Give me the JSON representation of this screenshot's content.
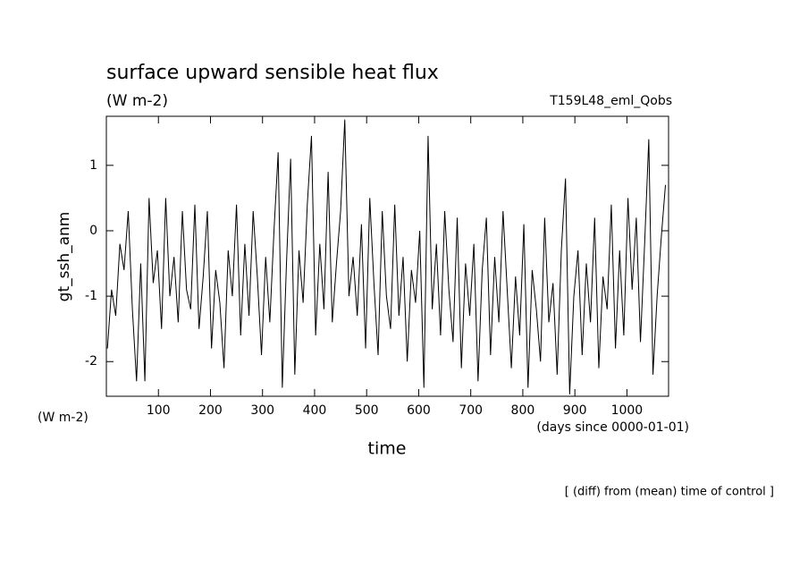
{
  "chart_data": {
    "type": "line",
    "title": "surface upward sensible heat flux",
    "subtitle": "(W m-2)",
    "annotation_right": "T159L48_eml_Qobs",
    "ylabel": "gt_ssh_anm",
    "y_unit": "(W m-2)",
    "xlabel": "time",
    "x_unit": "(days since 0000-01-01)",
    "footnote": "[ (diff) from (mean) time of control ]",
    "xlim": [
      0,
      1080
    ],
    "ylim": [
      -2.53,
      1.75
    ],
    "xticks": [
      100,
      200,
      300,
      400,
      500,
      600,
      700,
      800,
      900,
      1000
    ],
    "yticks": [
      1,
      0,
      -1,
      -2
    ],
    "x": [
      2,
      10,
      18,
      26,
      34,
      42,
      50,
      58,
      66,
      74,
      82,
      90,
      98,
      106,
      114,
      122,
      130,
      138,
      146,
      154,
      162,
      170,
      178,
      186,
      194,
      202,
      210,
      218,
      226,
      234,
      242,
      250,
      258,
      266,
      274,
      282,
      290,
      298,
      306,
      314,
      322,
      330,
      338,
      346,
      354,
      362,
      370,
      378,
      386,
      394,
      402,
      410,
      418,
      426,
      434,
      442,
      450,
      458,
      466,
      474,
      482,
      490,
      498,
      506,
      514,
      522,
      530,
      538,
      546,
      554,
      562,
      570,
      578,
      586,
      594,
      602,
      610,
      618,
      626,
      634,
      642,
      650,
      658,
      666,
      674,
      682,
      690,
      698,
      706,
      714,
      722,
      730,
      738,
      746,
      754,
      762,
      770,
      778,
      786,
      794,
      802,
      810,
      818,
      826,
      834,
      842,
      850,
      858,
      866,
      874,
      882,
      890,
      898,
      906,
      914,
      922,
      930,
      938,
      946,
      954,
      962,
      970,
      978,
      986,
      994,
      1002,
      1010,
      1018,
      1026,
      1034,
      1042,
      1050,
      1058,
      1066,
      1074
    ],
    "series": [
      {
        "name": "gt_ssh_anm",
        "color": "#000000",
        "values": [
          -1.8,
          -0.9,
          -1.3,
          -0.2,
          -0.6,
          0.3,
          -1.2,
          -2.3,
          -0.5,
          -2.3,
          0.5,
          -0.8,
          -0.3,
          -1.5,
          0.5,
          -1.0,
          -0.4,
          -1.4,
          0.3,
          -0.9,
          -1.2,
          0.4,
          -1.5,
          -0.7,
          0.3,
          -1.8,
          -0.6,
          -1.1,
          -2.1,
          -0.3,
          -1.0,
          0.4,
          -1.6,
          -0.2,
          -1.3,
          0.3,
          -0.7,
          -1.9,
          -0.4,
          -1.4,
          0.0,
          1.2,
          -2.4,
          -0.5,
          1.1,
          -2.2,
          -0.3,
          -1.1,
          0.4,
          1.45,
          -1.6,
          -0.2,
          -1.2,
          0.9,
          -1.4,
          -0.5,
          0.3,
          1.7,
          -1.0,
          -0.4,
          -1.3,
          0.1,
          -1.8,
          0.5,
          -0.8,
          -1.9,
          0.3,
          -1.0,
          -1.5,
          0.4,
          -1.3,
          -0.4,
          -2.0,
          -0.6,
          -1.1,
          0.0,
          -2.4,
          1.45,
          -1.2,
          -0.2,
          -1.6,
          0.3,
          -0.9,
          -1.7,
          0.2,
          -2.1,
          -0.5,
          -1.3,
          -0.2,
          -2.3,
          -0.6,
          0.2,
          -1.9,
          -0.4,
          -1.4,
          0.3,
          -0.9,
          -2.1,
          -0.7,
          -1.6,
          0.1,
          -2.4,
          -0.6,
          -1.2,
          -2.0,
          0.2,
          -1.4,
          -0.8,
          -2.2,
          -0.3,
          0.8,
          -2.5,
          -1.0,
          -0.3,
          -1.9,
          -0.5,
          -1.4,
          0.2,
          -2.1,
          -0.7,
          -1.2,
          0.4,
          -1.8,
          -0.3,
          -1.6,
          0.5,
          -0.9,
          0.2,
          -1.7,
          -0.2,
          1.4,
          -2.2,
          -1.0,
          -0.1,
          0.7
        ]
      }
    ]
  }
}
